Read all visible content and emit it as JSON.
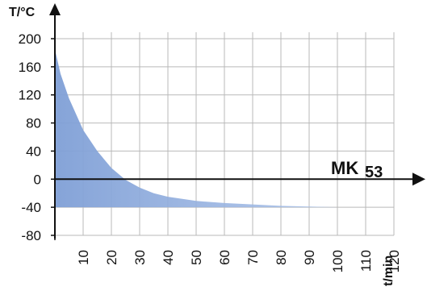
{
  "chart_data": {
    "type": "area",
    "ylabel": "T/°C",
    "xlabel": "t/min",
    "model_label": "MK",
    "model_label_sub": "53",
    "xlim": [
      0,
      120
    ],
    "ylim": [
      -80,
      200
    ],
    "x_ticks": [
      10,
      20,
      30,
      40,
      50,
      60,
      70,
      80,
      90,
      100,
      110,
      120
    ],
    "x_tick_labels": [
      "10",
      "20",
      "30",
      "40",
      "50",
      "60",
      "70",
      "80",
      "90",
      "100",
      "110",
      "120"
    ],
    "y_ticks": [
      200,
      160,
      120,
      80,
      40,
      0,
      -40,
      -80
    ],
    "y_tick_labels": [
      "200",
      "160",
      "120",
      "80",
      "40",
      "0",
      "-40",
      "-80"
    ],
    "grid": true,
    "fill_color": "#8fb0df",
    "x": [
      0,
      2,
      5,
      10,
      15,
      20,
      25,
      30,
      35,
      40,
      50,
      60,
      70,
      80,
      90,
      100
    ],
    "y": [
      185,
      150,
      115,
      70,
      40,
      16,
      -1,
      -12,
      -20,
      -25,
      -31,
      -34,
      -36,
      -38,
      -39,
      -40
    ],
    "fill_baseline": -40
  }
}
